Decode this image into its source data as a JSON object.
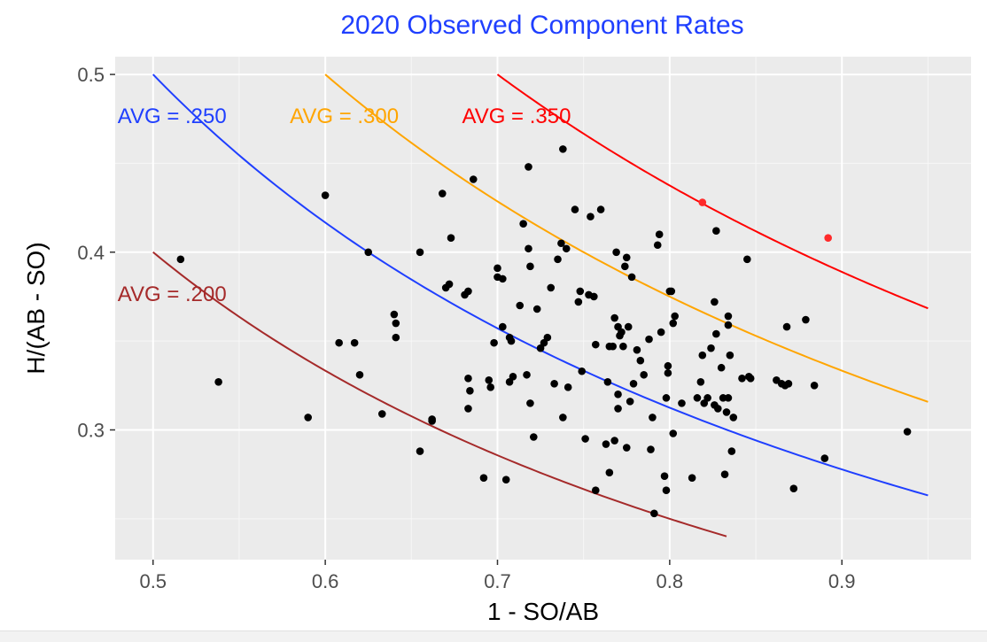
{
  "chart_data": {
    "type": "scatter",
    "title": "2020 Observed Component Rates",
    "xlabel": "1 - SO/AB",
    "ylabel": "H/(AB - SO)",
    "xlim": [
      0.478,
      0.975
    ],
    "ylim": [
      0.227,
      0.51
    ],
    "x_ticks": [
      0.5,
      0.6,
      0.7,
      0.8,
      0.9
    ],
    "x_tick_labels": [
      "0.5",
      "0.6",
      "0.7",
      "0.8",
      "0.9"
    ],
    "y_ticks": [
      0.3,
      0.4,
      0.5
    ],
    "y_tick_labels": [
      "0.3",
      "0.4",
      "0.5"
    ],
    "grid": true,
    "curves": [
      {
        "label": "AVG = .200",
        "avg": 0.2,
        "x_range": [
          0.5,
          0.833
        ],
        "color": "#a52a2a"
      },
      {
        "label": "AVG = .250",
        "avg": 0.25,
        "x_range": [
          0.5,
          0.95
        ],
        "color": "#1f3fff"
      },
      {
        "label": "AVG = .300",
        "avg": 0.3,
        "x_range": [
          0.6,
          0.95
        ],
        "color": "#ffa500"
      },
      {
        "label": "AVG = .350",
        "avg": 0.35,
        "x_range": [
          0.7,
          0.95
        ],
        "color": "#ff0000"
      }
    ],
    "highlight_points": [
      {
        "x": 0.819,
        "y": 0.428
      },
      {
        "x": 0.892,
        "y": 0.408
      }
    ],
    "points": [
      [
        0.516,
        0.396
      ],
      [
        0.538,
        0.327
      ],
      [
        0.59,
        0.307
      ],
      [
        0.6,
        0.432
      ],
      [
        0.608,
        0.349
      ],
      [
        0.617,
        0.349
      ],
      [
        0.62,
        0.331
      ],
      [
        0.625,
        0.4
      ],
      [
        0.633,
        0.309
      ],
      [
        0.64,
        0.365
      ],
      [
        0.641,
        0.36
      ],
      [
        0.641,
        0.352
      ],
      [
        0.655,
        0.288
      ],
      [
        0.655,
        0.4
      ],
      [
        0.662,
        0.306
      ],
      [
        0.662,
        0.305
      ],
      [
        0.668,
        0.433
      ],
      [
        0.67,
        0.38
      ],
      [
        0.672,
        0.382
      ],
      [
        0.673,
        0.408
      ],
      [
        0.681,
        0.376
      ],
      [
        0.683,
        0.378
      ],
      [
        0.683,
        0.312
      ],
      [
        0.683,
        0.329
      ],
      [
        0.684,
        0.322
      ],
      [
        0.686,
        0.441
      ],
      [
        0.692,
        0.273
      ],
      [
        0.695,
        0.328
      ],
      [
        0.696,
        0.324
      ],
      [
        0.698,
        0.349
      ],
      [
        0.7,
        0.391
      ],
      [
        0.7,
        0.386
      ],
      [
        0.703,
        0.385
      ],
      [
        0.703,
        0.358
      ],
      [
        0.705,
        0.272
      ],
      [
        0.707,
        0.352
      ],
      [
        0.707,
        0.327
      ],
      [
        0.708,
        0.35
      ],
      [
        0.709,
        0.33
      ],
      [
        0.713,
        0.37
      ],
      [
        0.715,
        0.416
      ],
      [
        0.717,
        0.331
      ],
      [
        0.718,
        0.402
      ],
      [
        0.718,
        0.448
      ],
      [
        0.719,
        0.392
      ],
      [
        0.719,
        0.315
      ],
      [
        0.721,
        0.296
      ],
      [
        0.723,
        0.368
      ],
      [
        0.725,
        0.346
      ],
      [
        0.727,
        0.349
      ],
      [
        0.729,
        0.352
      ],
      [
        0.731,
        0.38
      ],
      [
        0.733,
        0.326
      ],
      [
        0.735,
        0.396
      ],
      [
        0.737,
        0.405
      ],
      [
        0.738,
        0.307
      ],
      [
        0.738,
        0.458
      ],
      [
        0.74,
        0.402
      ],
      [
        0.741,
        0.324
      ],
      [
        0.745,
        0.424
      ],
      [
        0.747,
        0.372
      ],
      [
        0.748,
        0.378
      ],
      [
        0.749,
        0.333
      ],
      [
        0.751,
        0.295
      ],
      [
        0.753,
        0.376
      ],
      [
        0.754,
        0.42
      ],
      [
        0.756,
        0.375
      ],
      [
        0.757,
        0.348
      ],
      [
        0.757,
        0.266
      ],
      [
        0.76,
        0.424
      ],
      [
        0.763,
        0.292
      ],
      [
        0.764,
        0.327
      ],
      [
        0.765,
        0.347
      ],
      [
        0.765,
        0.276
      ],
      [
        0.767,
        0.347
      ],
      [
        0.768,
        0.363
      ],
      [
        0.768,
        0.294
      ],
      [
        0.769,
        0.4
      ],
      [
        0.77,
        0.358
      ],
      [
        0.77,
        0.32
      ],
      [
        0.77,
        0.312
      ],
      [
        0.771,
        0.353
      ],
      [
        0.772,
        0.355
      ],
      [
        0.773,
        0.347
      ],
      [
        0.774,
        0.392
      ],
      [
        0.775,
        0.397
      ],
      [
        0.775,
        0.29
      ],
      [
        0.776,
        0.358
      ],
      [
        0.777,
        0.316
      ],
      [
        0.778,
        0.386
      ],
      [
        0.779,
        0.326
      ],
      [
        0.781,
        0.345
      ],
      [
        0.783,
        0.339
      ],
      [
        0.785,
        0.331
      ],
      [
        0.788,
        0.351
      ],
      [
        0.789,
        0.289
      ],
      [
        0.79,
        0.307
      ],
      [
        0.791,
        0.253
      ],
      [
        0.793,
        0.404
      ],
      [
        0.794,
        0.41
      ],
      [
        0.795,
        0.355
      ],
      [
        0.797,
        0.274
      ],
      [
        0.798,
        0.318
      ],
      [
        0.798,
        0.266
      ],
      [
        0.799,
        0.332
      ],
      [
        0.799,
        0.336
      ],
      [
        0.8,
        0.378
      ],
      [
        0.801,
        0.378
      ],
      [
        0.802,
        0.36
      ],
      [
        0.802,
        0.298
      ],
      [
        0.803,
        0.364
      ],
      [
        0.807,
        0.315
      ],
      [
        0.813,
        0.273
      ],
      [
        0.816,
        0.318
      ],
      [
        0.818,
        0.327
      ],
      [
        0.819,
        0.342
      ],
      [
        0.82,
        0.315
      ],
      [
        0.822,
        0.318
      ],
      [
        0.824,
        0.346
      ],
      [
        0.826,
        0.372
      ],
      [
        0.826,
        0.314
      ],
      [
        0.827,
        0.412
      ],
      [
        0.827,
        0.354
      ],
      [
        0.828,
        0.312
      ],
      [
        0.83,
        0.335
      ],
      [
        0.831,
        0.318
      ],
      [
        0.832,
        0.275
      ],
      [
        0.833,
        0.31
      ],
      [
        0.834,
        0.364
      ],
      [
        0.834,
        0.359
      ],
      [
        0.834,
        0.318
      ],
      [
        0.835,
        0.342
      ],
      [
        0.836,
        0.288
      ],
      [
        0.837,
        0.307
      ],
      [
        0.842,
        0.329
      ],
      [
        0.845,
        0.396
      ],
      [
        0.846,
        0.33
      ],
      [
        0.847,
        0.329
      ],
      [
        0.862,
        0.328
      ],
      [
        0.865,
        0.326
      ],
      [
        0.867,
        0.325
      ],
      [
        0.868,
        0.358
      ],
      [
        0.869,
        0.326
      ],
      [
        0.872,
        0.267
      ],
      [
        0.879,
        0.362
      ],
      [
        0.884,
        0.325
      ],
      [
        0.89,
        0.284
      ],
      [
        0.938,
        0.299
      ]
    ]
  }
}
